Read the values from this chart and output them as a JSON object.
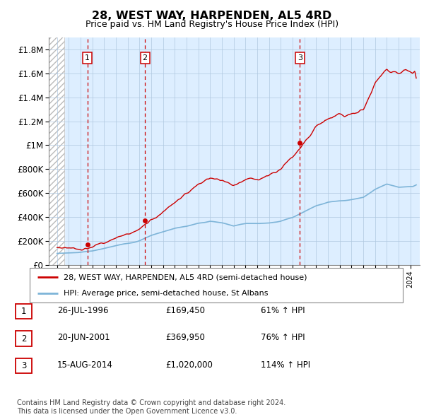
{
  "title": "28, WEST WAY, HARPENDEN, AL5 4RD",
  "subtitle": "Price paid vs. HM Land Registry's House Price Index (HPI)",
  "ylim": [
    0,
    1900000
  ],
  "yticks": [
    0,
    200000,
    400000,
    600000,
    800000,
    1000000,
    1200000,
    1400000,
    1600000,
    1800000
  ],
  "ytick_labels": [
    "£0",
    "£200K",
    "£400K",
    "£600K",
    "£800K",
    "£1M",
    "£1.2M",
    "£1.4M",
    "£1.6M",
    "£1.8M"
  ],
  "hpi_color": "#7db4d8",
  "price_color": "#cc0000",
  "vline_color": "#cc0000",
  "bg_color": "#ddeeff",
  "grid_color": "#b0c8e0",
  "sale_points": [
    {
      "year": 1996.57,
      "price": 169450,
      "label": "1"
    },
    {
      "year": 2001.47,
      "price": 369950,
      "label": "2"
    },
    {
      "year": 2014.62,
      "price": 1020000,
      "label": "3"
    }
  ],
  "legend_entries": [
    "28, WEST WAY, HARPENDEN, AL5 4RD (semi-detached house)",
    "HPI: Average price, semi-detached house, St Albans"
  ],
  "table_rows": [
    {
      "num": "1",
      "date": "26-JUL-1996",
      "price": "£169,450",
      "change": "61% ↑ HPI"
    },
    {
      "num": "2",
      "date": "20-JUN-2001",
      "price": "£369,950",
      "change": "76% ↑ HPI"
    },
    {
      "num": "3",
      "date": "15-AUG-2014",
      "price": "£1,020,000",
      "change": "114% ↑ HPI"
    }
  ],
  "footer": "Contains HM Land Registry data © Crown copyright and database right 2024.\nThis data is licensed under the Open Government Licence v3.0."
}
